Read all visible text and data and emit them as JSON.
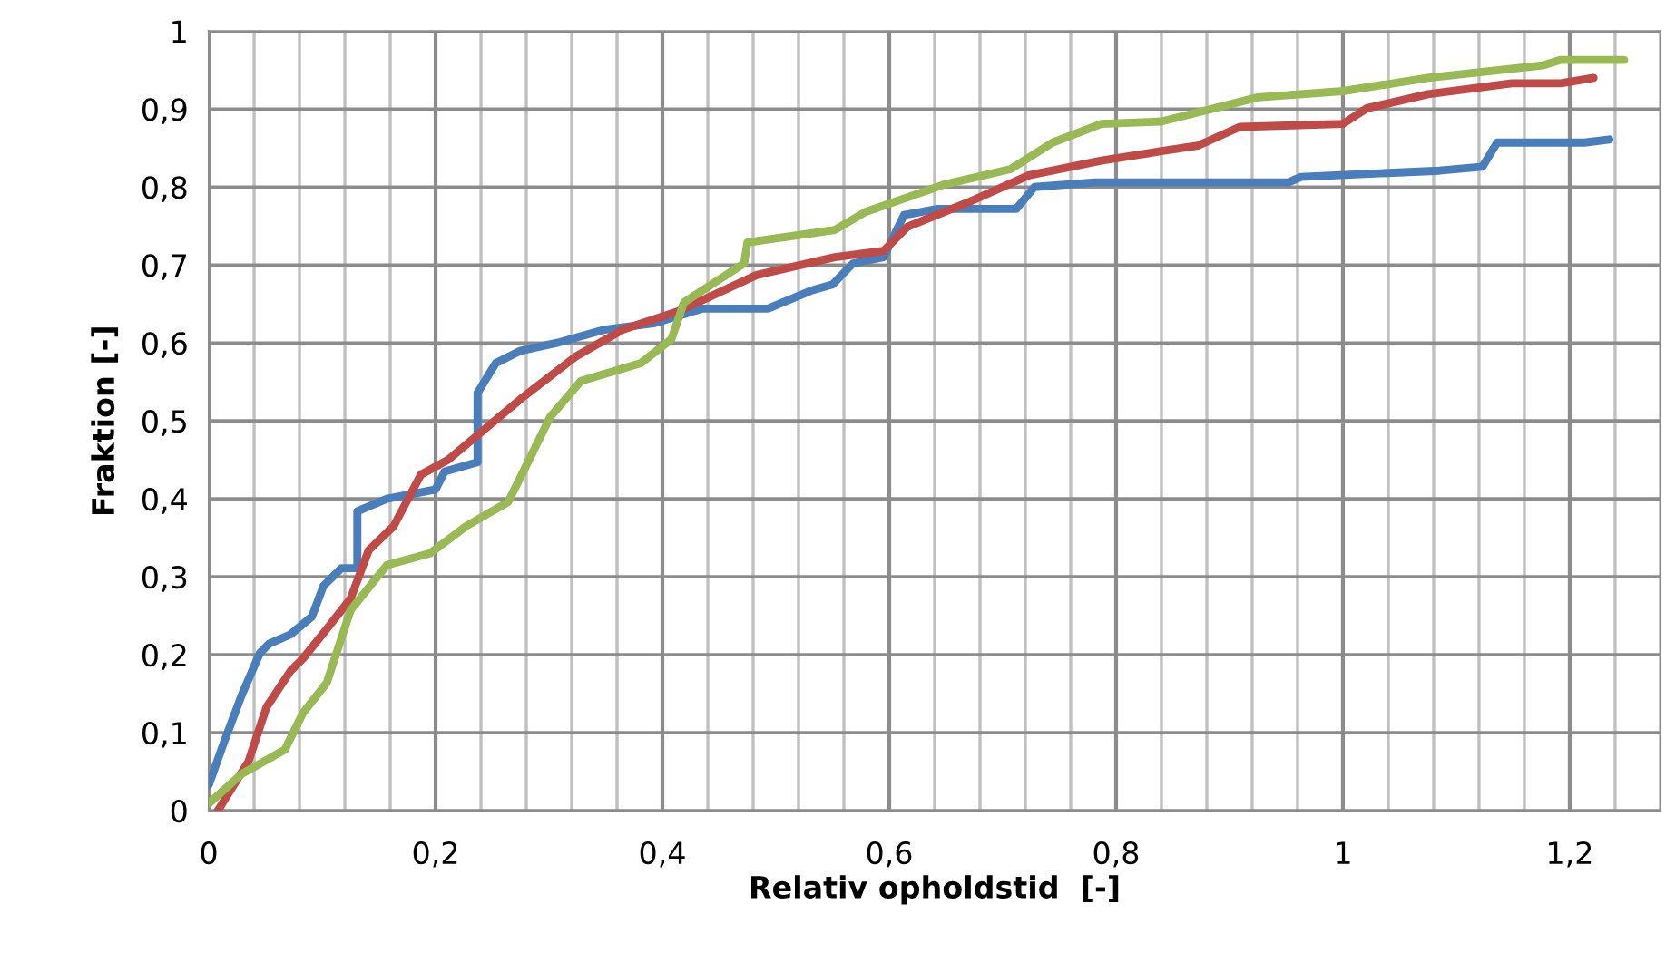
{
  "chart_data": {
    "type": "line",
    "xlabel": "Relativ opholdstid  [-]",
    "ylabel": "Fraktion [-]",
    "xlim": [
      0,
      1.28
    ],
    "ylim": [
      0,
      1
    ],
    "xticks": [
      0,
      {
        "value": 0.04,
        "label": null
      },
      {
        "value": 0.08,
        "label": null
      },
      {
        "value": 0.12,
        "label": null
      },
      {
        "value": 0.16,
        "label": null
      },
      {
        "value": 0.2,
        "label": "0,2"
      },
      {
        "value": 0.24,
        "label": null
      },
      {
        "value": 0.28,
        "label": null
      },
      {
        "value": 0.32,
        "label": null
      },
      {
        "value": 0.36,
        "label": null
      },
      {
        "value": 0.4,
        "label": "0,4"
      },
      {
        "value": 0.44,
        "label": null
      },
      {
        "value": 0.48,
        "label": null
      },
      {
        "value": 0.52,
        "label": null
      },
      {
        "value": 0.56,
        "label": null
      },
      {
        "value": 0.6,
        "label": "0,6"
      },
      {
        "value": 0.64,
        "label": null
      },
      {
        "value": 0.68,
        "label": null
      },
      {
        "value": 0.72,
        "label": null
      },
      {
        "value": 0.76,
        "label": null
      },
      {
        "value": 0.8,
        "label": "0,8"
      },
      {
        "value": 0.84,
        "label": null
      },
      {
        "value": 0.88,
        "label": null
      },
      {
        "value": 0.92,
        "label": null
      },
      {
        "value": 0.96,
        "label": null
      },
      1,
      {
        "value": 1.04,
        "label": null
      },
      {
        "value": 1.08,
        "label": null
      },
      {
        "value": 1.12,
        "label": null
      },
      {
        "value": 1.16,
        "label": null
      },
      {
        "value": 1.2,
        "label": "1,2"
      },
      {
        "value": 1.24,
        "label": null
      },
      {
        "value": 1.28,
        "label": null
      }
    ],
    "yticks": [
      0,
      {
        "value": 0.1,
        "label": "0,1"
      },
      {
        "value": 0.2,
        "label": "0,2"
      },
      {
        "value": 0.3,
        "label": "0,3"
      },
      {
        "value": 0.4,
        "label": "0,4"
      },
      {
        "value": 0.5,
        "label": "0,5"
      },
      {
        "value": 0.6,
        "label": "0,6"
      },
      {
        "value": 0.7,
        "label": "0,7"
      },
      {
        "value": 0.8,
        "label": "0,8"
      },
      {
        "value": 0.9,
        "label": "0,9"
      },
      1
    ],
    "grid": true,
    "legend": false,
    "marker": "none",
    "line_style": "solid",
    "series": [
      {
        "color": "#4a7ebb",
        "x": [
          0,
          0.013,
          0.029,
          0.045,
          0.053,
          0.072,
          0.091,
          0.101,
          0.117,
          0.131,
          0.131,
          0.157,
          0.2,
          0.208,
          0.237,
          0.237,
          0.253,
          0.275,
          0.307,
          0.349,
          0.392,
          0.435,
          0.493,
          0.531,
          0.55,
          0.568,
          0.595,
          0.613,
          0.643,
          0.712,
          0.728,
          0.781,
          0.84,
          0.952,
          0.963,
          1.085,
          1.123,
          1.136,
          1.213,
          1.235
        ],
        "values": [
          0.033,
          0.086,
          0.148,
          0.202,
          0.214,
          0.226,
          0.249,
          0.288,
          0.311,
          0.311,
          0.384,
          0.4,
          0.412,
          0.435,
          0.447,
          0.536,
          0.574,
          0.59,
          0.6,
          0.617,
          0.625,
          0.644,
          0.644,
          0.667,
          0.675,
          0.702,
          0.71,
          0.764,
          0.772,
          0.772,
          0.8,
          0.806,
          0.806,
          0.806,
          0.813,
          0.821,
          0.826,
          0.857,
          0.857,
          0.861
        ]
      },
      {
        "color": "#be4b48",
        "x": [
          0.008,
          0.035,
          0.051,
          0.072,
          0.083,
          0.104,
          0.125,
          0.141,
          0.163,
          0.187,
          0.211,
          0.243,
          0.275,
          0.323,
          0.365,
          0.413,
          0.483,
          0.552,
          0.595,
          0.616,
          0.669,
          0.723,
          0.787,
          0.84,
          0.872,
          0.909,
          1.0,
          1.021,
          1.075,
          1.149,
          1.192,
          1.221
        ],
        "values": [
          0,
          0.063,
          0.133,
          0.179,
          0.195,
          0.233,
          0.272,
          0.334,
          0.365,
          0.431,
          0.45,
          0.489,
          0.528,
          0.582,
          0.617,
          0.64,
          0.687,
          0.71,
          0.718,
          0.749,
          0.78,
          0.815,
          0.834,
          0.846,
          0.853,
          0.877,
          0.881,
          0.901,
          0.919,
          0.933,
          0.933,
          0.94
        ]
      },
      {
        "color": "#98b954",
        "x": [
          0,
          0.029,
          0.067,
          0.083,
          0.104,
          0.125,
          0.157,
          0.195,
          0.227,
          0.264,
          0.28,
          0.301,
          0.328,
          0.381,
          0.408,
          0.419,
          0.472,
          0.475,
          0.552,
          0.579,
          0.648,
          0.707,
          0.744,
          0.787,
          0.84,
          0.925,
          1.0,
          1.075,
          1.176,
          1.192,
          1.248
        ],
        "values": [
          0.009,
          0.047,
          0.078,
          0.125,
          0.164,
          0.257,
          0.315,
          0.33,
          0.365,
          0.396,
          0.443,
          0.505,
          0.551,
          0.574,
          0.605,
          0.652,
          0.702,
          0.729,
          0.745,
          0.768,
          0.803,
          0.823,
          0.857,
          0.881,
          0.884,
          0.915,
          0.923,
          0.94,
          0.956,
          0.963,
          0.963
        ]
      }
    ]
  }
}
